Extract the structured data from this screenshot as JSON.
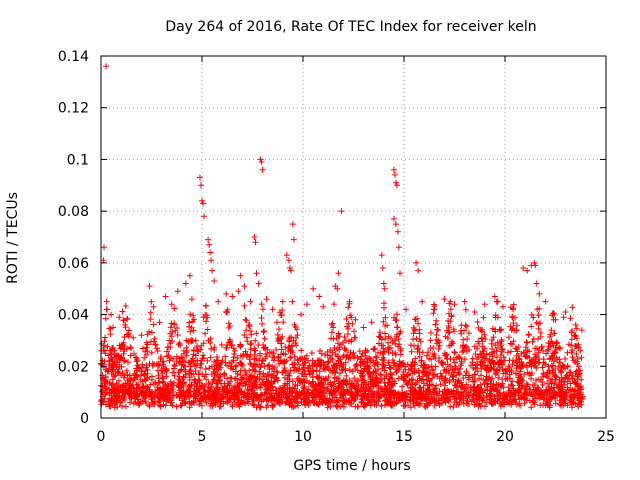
{
  "chart_data": {
    "type": "scatter",
    "title": "Day 264 of 2016, Rate Of TEC Index for receiver keln",
    "xlabel": "GPS time / hours",
    "ylabel": "ROTI / TECUs",
    "xlim": [
      0,
      25
    ],
    "ylim": [
      0,
      0.14
    ],
    "xticks": [
      0,
      5,
      10,
      15,
      20,
      25
    ],
    "xtick_labels": [
      "0",
      "5",
      "10",
      "15",
      "20",
      "25"
    ],
    "yticks": [
      0,
      0.02,
      0.04,
      0.06,
      0.08,
      0.1,
      0.12,
      0.14
    ],
    "ytick_labels": [
      "0",
      "0.02",
      "0.04",
      "0.06",
      "0.08",
      "0.1",
      "0.12",
      "0.14"
    ],
    "grid": true,
    "marker": "+",
    "color": "#ff0000",
    "series": [
      {
        "name": "ROTI",
        "points": [
          [
            0.25,
            0.136
          ],
          [
            0.15,
            0.066
          ],
          [
            0.12,
            0.061
          ],
          [
            0.3,
            0.042
          ],
          [
            0.5,
            0.04
          ],
          [
            0.6,
            0.035
          ],
          [
            0.9,
            0.039
          ],
          [
            1.2,
            0.036
          ],
          [
            1.6,
            0.031
          ],
          [
            2.0,
            0.032
          ],
          [
            2.4,
            0.051
          ],
          [
            2.6,
            0.043
          ],
          [
            2.9,
            0.037
          ],
          [
            3.2,
            0.047
          ],
          [
            3.5,
            0.044
          ],
          [
            3.8,
            0.049
          ],
          [
            4.2,
            0.052
          ],
          [
            4.4,
            0.055
          ],
          [
            4.5,
            0.046
          ],
          [
            4.9,
            0.093
          ],
          [
            4.95,
            0.09
          ],
          [
            5.0,
            0.084
          ],
          [
            5.05,
            0.083
          ],
          [
            5.1,
            0.078
          ],
          [
            5.3,
            0.069
          ],
          [
            5.35,
            0.067
          ],
          [
            5.4,
            0.064
          ],
          [
            5.45,
            0.061
          ],
          [
            5.5,
            0.057
          ],
          [
            5.6,
            0.053
          ],
          [
            5.8,
            0.045
          ],
          [
            6.2,
            0.048
          ],
          [
            6.5,
            0.047
          ],
          [
            6.8,
            0.049
          ],
          [
            6.9,
            0.055
          ],
          [
            7.1,
            0.051
          ],
          [
            7.4,
            0.045
          ],
          [
            7.6,
            0.07
          ],
          [
            7.65,
            0.068
          ],
          [
            7.7,
            0.056
          ],
          [
            7.8,
            0.052
          ],
          [
            7.9,
            0.1
          ],
          [
            7.95,
            0.099
          ],
          [
            8.0,
            0.096
          ],
          [
            8.2,
            0.046
          ],
          [
            8.5,
            0.042
          ],
          [
            9.0,
            0.045
          ],
          [
            9.2,
            0.063
          ],
          [
            9.3,
            0.061
          ],
          [
            9.35,
            0.058
          ],
          [
            9.4,
            0.057
          ],
          [
            9.5,
            0.075
          ],
          [
            9.55,
            0.069
          ],
          [
            9.9,
            0.04
          ],
          [
            10.2,
            0.044
          ],
          [
            10.5,
            0.05
          ],
          [
            10.8,
            0.047
          ],
          [
            11.0,
            0.043
          ],
          [
            11.6,
            0.051
          ],
          [
            11.7,
            0.05
          ],
          [
            11.75,
            0.056
          ],
          [
            11.9,
            0.08
          ],
          [
            12.3,
            0.045
          ],
          [
            12.6,
            0.038
          ],
          [
            13.0,
            0.035
          ],
          [
            13.4,
            0.037
          ],
          [
            13.9,
            0.063
          ],
          [
            13.95,
            0.058
          ],
          [
            14.0,
            0.052
          ],
          [
            14.05,
            0.05
          ],
          [
            14.5,
            0.096
          ],
          [
            14.55,
            0.094
          ],
          [
            14.6,
            0.091
          ],
          [
            14.65,
            0.09
          ],
          [
            14.5,
            0.077
          ],
          [
            14.6,
            0.075
          ],
          [
            14.7,
            0.072
          ],
          [
            14.75,
            0.066
          ],
          [
            14.8,
            0.056
          ],
          [
            15.1,
            0.042
          ],
          [
            15.6,
            0.06
          ],
          [
            15.7,
            0.057
          ],
          [
            15.9,
            0.045
          ],
          [
            16.5,
            0.042
          ],
          [
            17.0,
            0.046
          ],
          [
            17.5,
            0.044
          ],
          [
            18.0,
            0.045
          ],
          [
            18.5,
            0.041
          ],
          [
            19.0,
            0.044
          ],
          [
            19.5,
            0.047
          ],
          [
            19.9,
            0.043
          ],
          [
            20.4,
            0.042
          ],
          [
            20.9,
            0.058
          ],
          [
            21.1,
            0.057
          ],
          [
            21.3,
            0.059
          ],
          [
            21.45,
            0.06
          ],
          [
            21.5,
            0.059
          ],
          [
            21.55,
            0.052
          ],
          [
            21.7,
            0.048
          ],
          [
            22.0,
            0.045
          ],
          [
            22.5,
            0.038
          ],
          [
            22.9,
            0.039
          ],
          [
            23.0,
            0.041
          ],
          [
            23.5,
            0.036
          ],
          [
            23.8,
            0.034
          ]
        ]
      }
    ],
    "dense_band": {
      "x_range": [
        0,
        23.85
      ],
      "activity_peaks": [
        0.3,
        1.2,
        2.5,
        3.6,
        4.5,
        5.2,
        6.3,
        7.2,
        7.9,
        8.9,
        9.5,
        11.6,
        12.3,
        14.0,
        14.6,
        15.6,
        16.5,
        17.3,
        18.0,
        18.8,
        19.6,
        20.4,
        21.3,
        21.6,
        22.4,
        23.4
      ]
    }
  }
}
